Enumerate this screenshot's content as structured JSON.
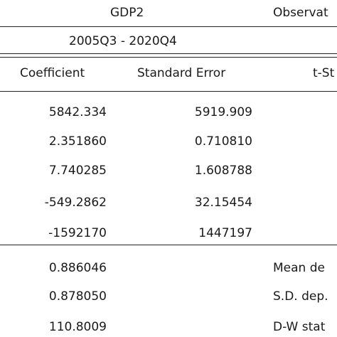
{
  "header": {
    "dependent": "GDP2",
    "observations": "Observat",
    "sample": "2005Q3 - 2020Q4"
  },
  "table": {
    "columns": [
      "Coefficient",
      "Standard Error",
      "t-St"
    ],
    "rows": [
      [
        "5842.334",
        "5919.909"
      ],
      [
        "2.351860",
        "0.710810"
      ],
      [
        "7.740285",
        "1.608788"
      ],
      [
        "-549.2862",
        "32.15454"
      ],
      [
        "-1592170",
        "1447197"
      ]
    ]
  },
  "stats": {
    "rows": [
      [
        "0.886046",
        "Mean de"
      ],
      [
        "0.878050",
        "S.D. dep."
      ],
      [
        "110.8009",
        "D-W stat"
      ]
    ]
  }
}
